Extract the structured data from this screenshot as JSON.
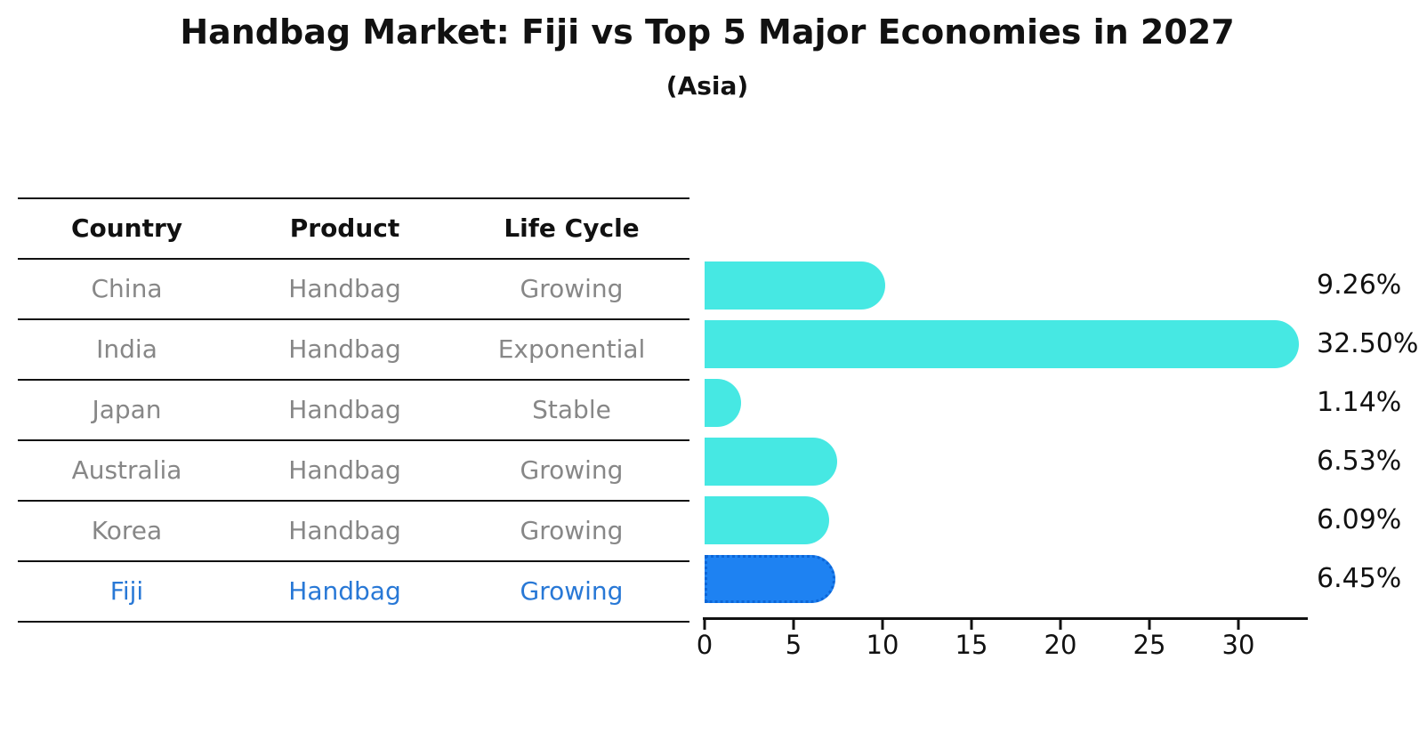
{
  "title": "Handbag Market: Fiji vs Top 5 Major Economies in 2027",
  "subtitle": "(Asia)",
  "table": {
    "headers": {
      "country": "Country",
      "product": "Product",
      "life_cycle": "Life Cycle"
    },
    "rows": [
      {
        "country": "China",
        "product": "Handbag",
        "life_cycle": "Growing",
        "share": "9.26%"
      },
      {
        "country": "India",
        "product": "Handbag",
        "life_cycle": "Exponential",
        "share": "32.50%"
      },
      {
        "country": "Japan",
        "product": "Handbag",
        "life_cycle": "Stable",
        "share": "1.14%"
      },
      {
        "country": "Australia",
        "product": "Handbag",
        "life_cycle": "Growing",
        "share": "6.53%"
      },
      {
        "country": "Korea",
        "product": "Handbag",
        "life_cycle": "Growing",
        "share": "6.09%"
      },
      {
        "country": "Fiji",
        "product": "Handbag",
        "life_cycle": "Growing",
        "share": "6.45%"
      }
    ]
  },
  "chart_data": {
    "type": "bar",
    "orientation": "horizontal",
    "title": "Handbag Market: Fiji vs Top 5 Major Economies in 2027",
    "subtitle": "(Asia)",
    "categories": [
      "China",
      "India",
      "Japan",
      "Australia",
      "Korea",
      "Fiji"
    ],
    "values": [
      9.26,
      32.5,
      1.14,
      6.53,
      6.09,
      6.45
    ],
    "value_labels": [
      "9.26%",
      "32.50%",
      "1.14%",
      "6.53%",
      "6.09%",
      "6.45%"
    ],
    "unit": "percent",
    "x_ticks": [
      0,
      5,
      10,
      15,
      20,
      25,
      30
    ],
    "xlim": [
      0,
      34
    ],
    "grid": false,
    "legend": false,
    "highlight_category": "Fiji",
    "highlight_index": 5,
    "bar_color": "#46E8E3",
    "highlight_bar_color": "#1E82F2",
    "highlight_text_color": "#2878D6",
    "row_text_color": "#878787",
    "axis_color": "#111111"
  }
}
